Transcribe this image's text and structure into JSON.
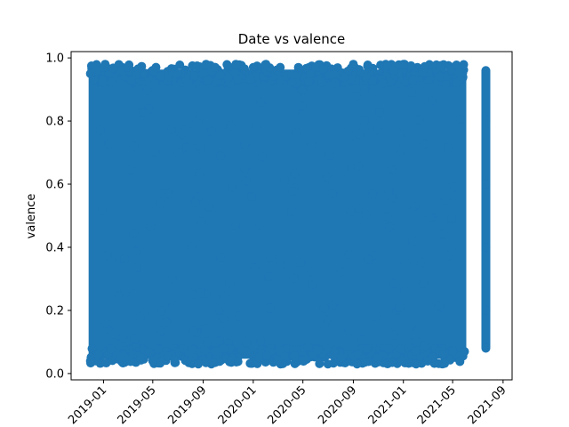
{
  "chart_data": {
    "type": "scatter",
    "title": "Date vs valence",
    "xlabel": "",
    "ylabel": "valence",
    "x_type": "date",
    "xlim": [
      "2018-10-14",
      "2021-09-23"
    ],
    "ylim": [
      -0.02,
      1.02
    ],
    "x_ticks": [
      "2019-01",
      "2019-05",
      "2019-09",
      "2020-01",
      "2020-05",
      "2020-09",
      "2021-01",
      "2021-05",
      "2021-09"
    ],
    "y_ticks": [
      "0.0",
      "0.2",
      "0.4",
      "0.6",
      "0.8",
      "1.0"
    ],
    "marker_color": "#1f77b4",
    "grid": false,
    "series": [
      {
        "x_range": [
          "2018-11-30",
          "2021-05-30"
        ],
        "y_range": [
          0.03,
          0.98
        ],
        "density": "dense, fills range",
        "values": [
          [
            "2018-11-30",
            0.04
          ],
          [
            "2018-11-30",
            0.95
          ],
          [
            "2018-12-20",
            0.06
          ],
          [
            "2019-01-01",
            0.97
          ],
          [
            "2019-01-05",
            0.98
          ],
          [
            "2019-02-10",
            0.05
          ],
          [
            "2019-02-15",
            0.96
          ],
          [
            "2019-03-01",
            0.97
          ],
          [
            "2019-04-01",
            0.05
          ],
          [
            "2019-05-01",
            0.04
          ],
          [
            "2019-05-03",
            0.96
          ],
          [
            "2019-07-01",
            0.95
          ],
          [
            "2019-08-01",
            0.04
          ],
          [
            "2019-08-20",
            0.03
          ],
          [
            "2019-09-01",
            0.95
          ],
          [
            "2019-09-08",
            0.98
          ],
          [
            "2019-10-01",
            0.07
          ],
          [
            "2020-01-01",
            0.97
          ],
          [
            "2020-01-15",
            0.05
          ],
          [
            "2020-02-01",
            0.98
          ],
          [
            "2020-03-01",
            0.04
          ],
          [
            "2020-05-01",
            0.04
          ],
          [
            "2020-06-01",
            0.97
          ],
          [
            "2020-07-01",
            0.03
          ],
          [
            "2020-09-01",
            0.98
          ],
          [
            "2020-09-10",
            0.03
          ],
          [
            "2020-11-01",
            0.05
          ],
          [
            "2021-01-01",
            0.98
          ],
          [
            "2021-02-01",
            0.03
          ],
          [
            "2021-03-01",
            0.04
          ],
          [
            "2021-04-01",
            0.97
          ],
          [
            "2021-05-30",
            0.07
          ]
        ]
      },
      {
        "x_range": [
          "2021-07-21",
          "2021-07-21"
        ],
        "y_range": [
          0.08,
          0.96
        ],
        "values": [
          [
            "2021-07-21",
            0.08
          ],
          [
            "2021-07-21",
            0.2
          ],
          [
            "2021-07-21",
            0.4
          ],
          [
            "2021-07-21",
            0.6
          ],
          [
            "2021-07-21",
            0.8
          ],
          [
            "2021-07-21",
            0.96
          ]
        ]
      }
    ]
  }
}
